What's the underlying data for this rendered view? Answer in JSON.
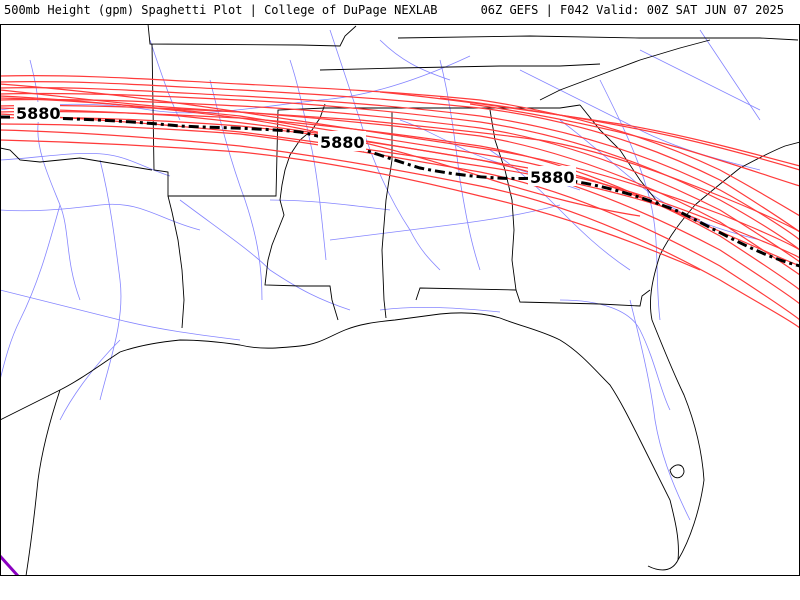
{
  "header": {
    "left": "500mb Height (gpm) Spaghetti Plot | College of DuPage NEXLAB",
    "right": "06Z GEFS | F042 Valid: 00Z SAT JUN 07 2025"
  },
  "colors": {
    "member_line": "#ff3b3b",
    "mean_line": "#000000",
    "state_border": "#000000",
    "highway": "#7070ff",
    "purple_line": "#8a00c0"
  },
  "map": {
    "region": "Southeastern United States",
    "contour_value": 5880,
    "contour_labels": [
      "5880",
      "5880",
      "5880"
    ]
  }
}
